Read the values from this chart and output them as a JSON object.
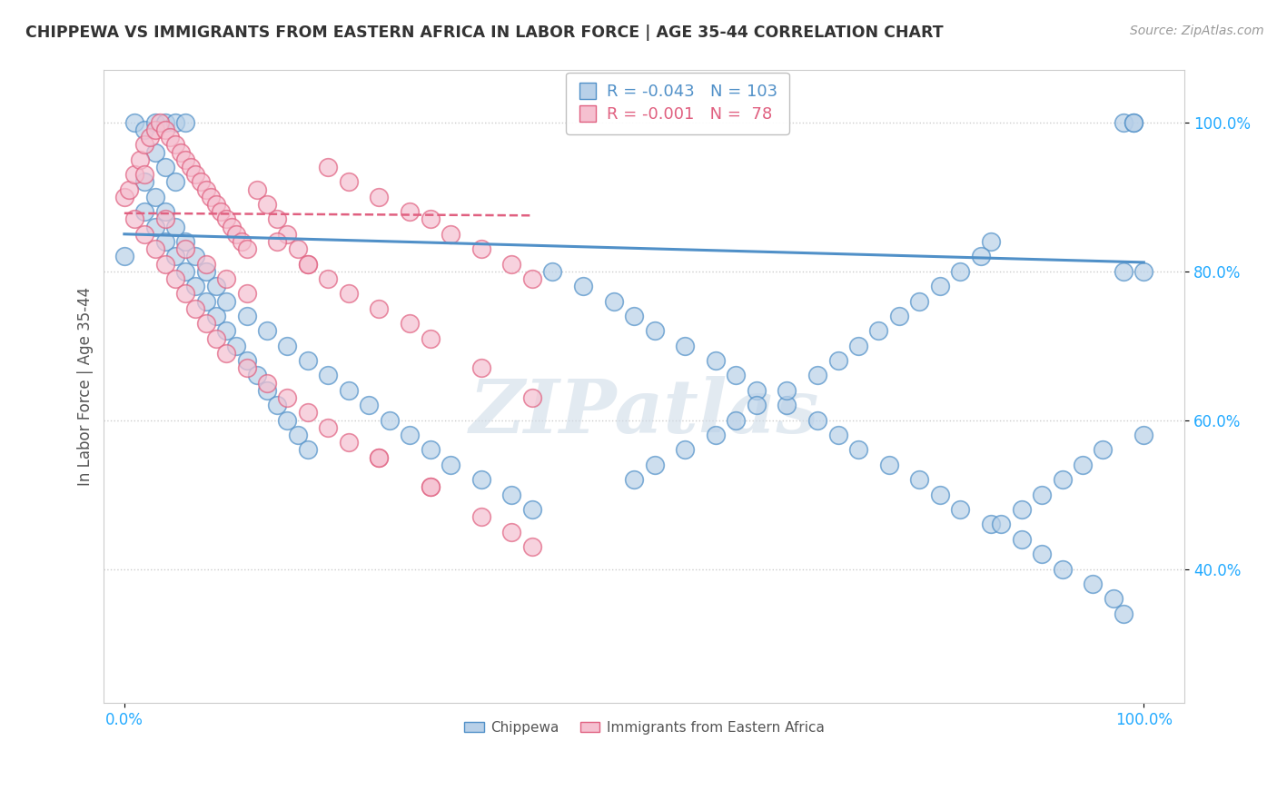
{
  "title": "CHIPPEWA VS IMMIGRANTS FROM EASTERN AFRICA IN LABOR FORCE | AGE 35-44 CORRELATION CHART",
  "source": "Source: ZipAtlas.com",
  "ylabel": "In Labor Force | Age 35-44",
  "x_tick_labels": [
    "0.0%",
    "100.0%"
  ],
  "y_tick_labels": [
    "40.0%",
    "60.0%",
    "80.0%",
    "100.0%"
  ],
  "legend_blue_R": "-0.043",
  "legend_blue_N": "103",
  "legend_pink_R": "-0.001",
  "legend_pink_N": " 78",
  "legend_blue_label": "Chippewa",
  "legend_pink_label": "Immigrants from Eastern Africa",
  "blue_face": "#b8d0e8",
  "pink_face": "#f5c0d0",
  "blue_edge": "#5090c8",
  "pink_edge": "#e06080",
  "blue_line": "#5090c8",
  "pink_line": "#e06080",
  "background_color": "#ffffff",
  "grid_color": "#cccccc",
  "title_color": "#333333",
  "source_color": "#999999",
  "axis_label_color": "#555555",
  "tick_label_color": "#22aaff",
  "watermark_color": "#d0dce8",
  "blue_scatter_x": [
    0.0,
    0.01,
    0.02,
    0.03,
    0.04,
    0.05,
    0.06,
    0.03,
    0.04,
    0.05,
    0.02,
    0.03,
    0.04,
    0.05,
    0.06,
    0.07,
    0.08,
    0.09,
    0.1,
    0.11,
    0.12,
    0.13,
    0.14,
    0.15,
    0.16,
    0.17,
    0.18,
    0.02,
    0.03,
    0.04,
    0.05,
    0.06,
    0.07,
    0.08,
    0.09,
    0.1,
    0.12,
    0.14,
    0.16,
    0.18,
    0.2,
    0.22,
    0.24,
    0.26,
    0.28,
    0.3,
    0.32,
    0.35,
    0.38,
    0.4,
    0.42,
    0.45,
    0.48,
    0.5,
    0.52,
    0.55,
    0.58,
    0.6,
    0.62,
    0.65,
    0.68,
    0.7,
    0.72,
    0.75,
    0.78,
    0.8,
    0.82,
    0.85,
    0.88,
    0.9,
    0.92,
    0.95,
    0.97,
    0.98,
    1.0,
    0.98,
    0.99,
    1.0,
    0.99,
    0.98,
    0.96,
    0.94,
    0.92,
    0.9,
    0.88,
    0.86,
    0.85,
    0.84,
    0.82,
    0.8,
    0.78,
    0.76,
    0.74,
    0.72,
    0.7,
    0.68,
    0.65,
    0.62,
    0.6,
    0.58,
    0.55,
    0.52,
    0.5
  ],
  "blue_scatter_y": [
    0.82,
    1.0,
    0.99,
    1.0,
    1.0,
    1.0,
    1.0,
    0.96,
    0.94,
    0.92,
    0.88,
    0.86,
    0.84,
    0.82,
    0.8,
    0.78,
    0.76,
    0.74,
    0.72,
    0.7,
    0.68,
    0.66,
    0.64,
    0.62,
    0.6,
    0.58,
    0.56,
    0.92,
    0.9,
    0.88,
    0.86,
    0.84,
    0.82,
    0.8,
    0.78,
    0.76,
    0.74,
    0.72,
    0.7,
    0.68,
    0.66,
    0.64,
    0.62,
    0.6,
    0.58,
    0.56,
    0.54,
    0.52,
    0.5,
    0.48,
    0.8,
    0.78,
    0.76,
    0.74,
    0.72,
    0.7,
    0.68,
    0.66,
    0.64,
    0.62,
    0.6,
    0.58,
    0.56,
    0.54,
    0.52,
    0.5,
    0.48,
    0.46,
    0.44,
    0.42,
    0.4,
    0.38,
    0.36,
    0.34,
    0.8,
    1.0,
    1.0,
    0.58,
    1.0,
    0.8,
    0.56,
    0.54,
    0.52,
    0.5,
    0.48,
    0.46,
    0.84,
    0.82,
    0.8,
    0.78,
    0.76,
    0.74,
    0.72,
    0.7,
    0.68,
    0.66,
    0.64,
    0.62,
    0.6,
    0.58,
    0.56,
    0.54,
    0.52
  ],
  "pink_scatter_x": [
    0.0,
    0.005,
    0.01,
    0.015,
    0.02,
    0.025,
    0.03,
    0.035,
    0.04,
    0.045,
    0.05,
    0.055,
    0.06,
    0.065,
    0.07,
    0.075,
    0.08,
    0.085,
    0.09,
    0.095,
    0.1,
    0.105,
    0.11,
    0.115,
    0.12,
    0.13,
    0.14,
    0.15,
    0.16,
    0.17,
    0.18,
    0.2,
    0.22,
    0.25,
    0.28,
    0.3,
    0.32,
    0.35,
    0.38,
    0.4,
    0.02,
    0.04,
    0.06,
    0.08,
    0.1,
    0.12,
    0.15,
    0.18,
    0.2,
    0.22,
    0.25,
    0.28,
    0.3,
    0.35,
    0.4,
    0.01,
    0.02,
    0.03,
    0.04,
    0.05,
    0.06,
    0.07,
    0.08,
    0.09,
    0.1,
    0.12,
    0.14,
    0.16,
    0.18,
    0.2,
    0.22,
    0.25,
    0.3,
    0.35,
    0.4,
    0.25,
    0.3,
    0.38
  ],
  "pink_scatter_y": [
    0.9,
    0.91,
    0.93,
    0.95,
    0.97,
    0.98,
    0.99,
    1.0,
    0.99,
    0.98,
    0.97,
    0.96,
    0.95,
    0.94,
    0.93,
    0.92,
    0.91,
    0.9,
    0.89,
    0.88,
    0.87,
    0.86,
    0.85,
    0.84,
    0.83,
    0.91,
    0.89,
    0.87,
    0.85,
    0.83,
    0.81,
    0.94,
    0.92,
    0.9,
    0.88,
    0.87,
    0.85,
    0.83,
    0.81,
    0.79,
    0.93,
    0.87,
    0.83,
    0.81,
    0.79,
    0.77,
    0.84,
    0.81,
    0.79,
    0.77,
    0.75,
    0.73,
    0.71,
    0.67,
    0.63,
    0.87,
    0.85,
    0.83,
    0.81,
    0.79,
    0.77,
    0.75,
    0.73,
    0.71,
    0.69,
    0.67,
    0.65,
    0.63,
    0.61,
    0.59,
    0.57,
    0.55,
    0.51,
    0.47,
    0.43,
    0.55,
    0.51,
    0.45
  ],
  "xlim": [
    -0.02,
    1.04
  ],
  "ylim": [
    0.22,
    1.07
  ],
  "blue_trend_x": [
    0.0,
    1.0
  ],
  "blue_trend_y": [
    0.85,
    0.812
  ],
  "pink_trend_x": [
    0.0,
    0.4
  ],
  "pink_trend_y": [
    0.878,
    0.875
  ]
}
